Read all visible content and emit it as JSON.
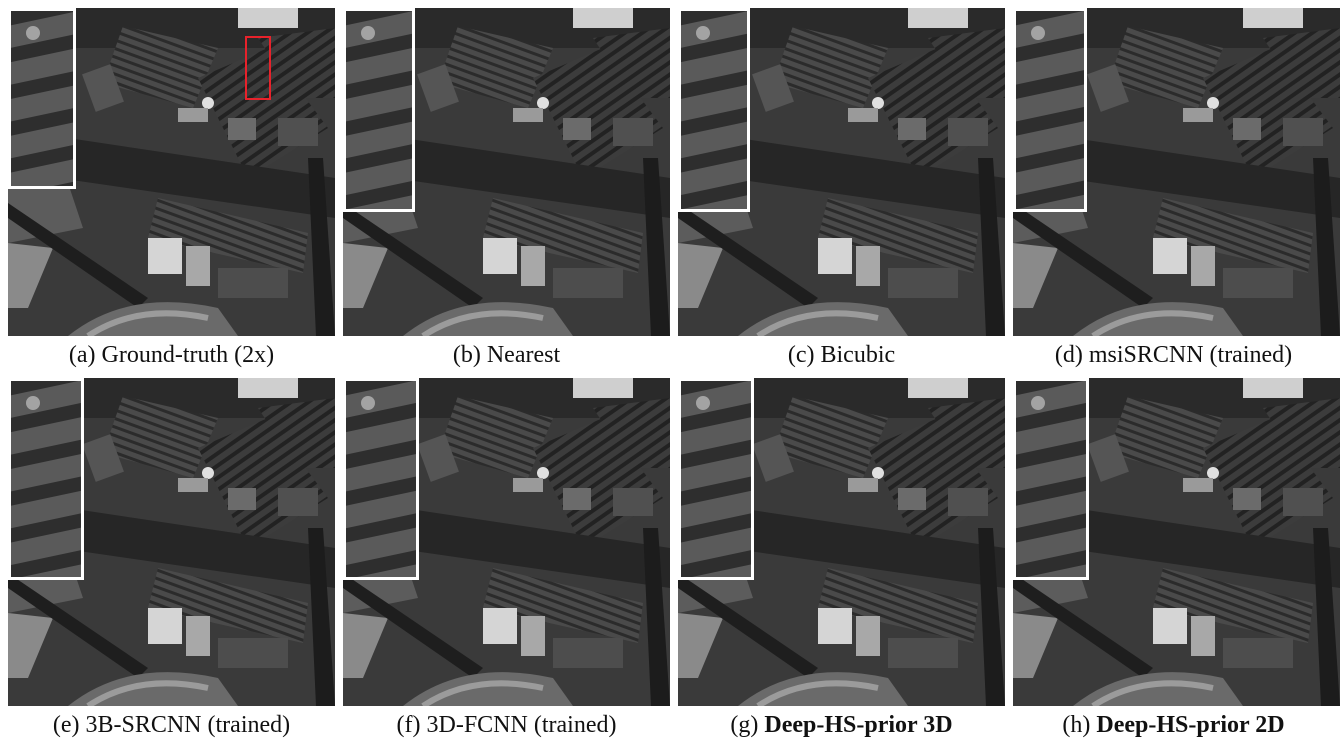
{
  "panels": [
    {
      "id": "a",
      "prefix": "(a) ",
      "label": "Ground-truth (2x)",
      "bold": false
    },
    {
      "id": "b",
      "prefix": "(b) ",
      "label": "Nearest",
      "bold": false
    },
    {
      "id": "c",
      "prefix": "(c) ",
      "label": "Bicubic",
      "bold": false
    },
    {
      "id": "d",
      "prefix": "(d) ",
      "label": "msiSRCNN (trained)",
      "bold": false
    },
    {
      "id": "e",
      "prefix": "(e) ",
      "label": "3B-SRCNN (trained)",
      "bold": false
    },
    {
      "id": "f",
      "prefix": "(f) ",
      "label": "3D-FCNN (trained)",
      "bold": false
    },
    {
      "id": "g",
      "prefix": "(g) ",
      "label": "Deep-HS-prior 3D",
      "bold": true
    },
    {
      "id": "h",
      "prefix": "(h) ",
      "label": "Deep-HS-prior 2D",
      "bold": true
    }
  ],
  "colors": {
    "highlight_box": "#e8222b",
    "inset_border": "#ffffff"
  }
}
